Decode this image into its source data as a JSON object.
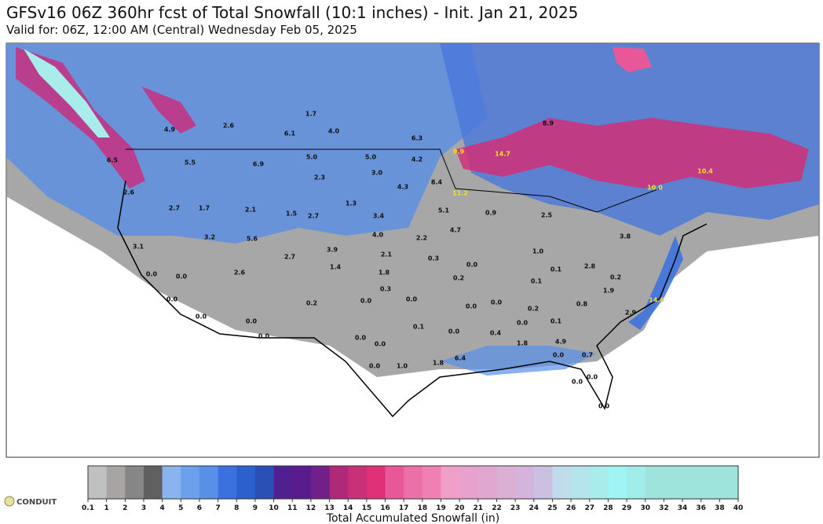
{
  "header": {
    "title": "GFSv16 06Z 360hr fcst of Total Snowfall (10:1 inches) - Init. Jan 21, 2025",
    "subtitle": "Valid for: 06Z, 12:00 AM (Central) Wednesday Feb 05, 2025"
  },
  "map": {
    "labels": [
      "1.7",
      "4.0",
      "6.1",
      "4.9",
      "2.6",
      "8.9",
      "6.3",
      "9.9",
      "5.0",
      "5.0",
      "4.2",
      "3.0",
      "2.3",
      "4.3",
      "8.4",
      "11.2",
      "6.5",
      "5.5",
      "6.9",
      "2.6",
      "2.7",
      "1.7",
      "2.1",
      "1.5",
      "2.7",
      "1.3",
      "3.4",
      "5.1",
      "0.9",
      "2.5",
      "3.2",
      "5.6",
      "4.0",
      "2.2",
      "4.7",
      "3.8",
      "3.1",
      "2.7",
      "3.9",
      "2.1",
      "0.3",
      "0.0",
      "1.0",
      "0.1",
      "2.8",
      "0.0",
      "0.0",
      "2.6",
      "1.4",
      "1.8",
      "0.2",
      "0.1",
      "0.2",
      "0.3",
      "1.9",
      "0.0",
      "0.2",
      "0.0",
      "0.0",
      "0.0",
      "0.0",
      "0.2",
      "0.8",
      "2.9",
      "14.6",
      "0.0",
      "0.0",
      "0.1",
      "0.0",
      "0.4",
      "0.0",
      "0.1",
      "0.0",
      "0.0",
      "0.0",
      "1.8",
      "4.9",
      "0.7",
      "6.4",
      "1.8",
      "1.0",
      "0.0",
      "0.0",
      "0.0",
      "0.0",
      "0.0",
      "10.4",
      "10.0",
      "14.7"
    ]
  },
  "legend": {
    "label": "Total Accumulated Snowfall (in)",
    "ticks": [
      0.1,
      1,
      2,
      3,
      4,
      5,
      6,
      7,
      8,
      9,
      10,
      11,
      12,
      13,
      14,
      15,
      16,
      17,
      18,
      19,
      20,
      21,
      22,
      23,
      24,
      25,
      26,
      27,
      28,
      29,
      30,
      32,
      34,
      36,
      38,
      40
    ],
    "colors": [
      "#c0c0c0",
      "#a8a4a4",
      "#868686",
      "#606060",
      "#8ab4f0",
      "#6aa0ec",
      "#5890e8",
      "#3a70e0",
      "#2c60cc",
      "#2a50b8",
      "#502090",
      "#5a1c8c",
      "#702088",
      "#b02878",
      "#c83078",
      "#e03078",
      "#e85898",
      "#ec70a8",
      "#f080b4",
      "#f0a0c8",
      "#e8a0cc",
      "#e0a8d0",
      "#dcb0d4",
      "#d4b4dc",
      "#ccc0e0",
      "#c0dcec",
      "#b4e4ec",
      "#a8ecec",
      "#a0f4f4",
      "#a0ece8",
      "#9ee4dc",
      "#9ee4dc",
      "#9ee4dc",
      "#9ee4dc",
      "#9ee4dc"
    ]
  },
  "logo": "CONDUIT"
}
